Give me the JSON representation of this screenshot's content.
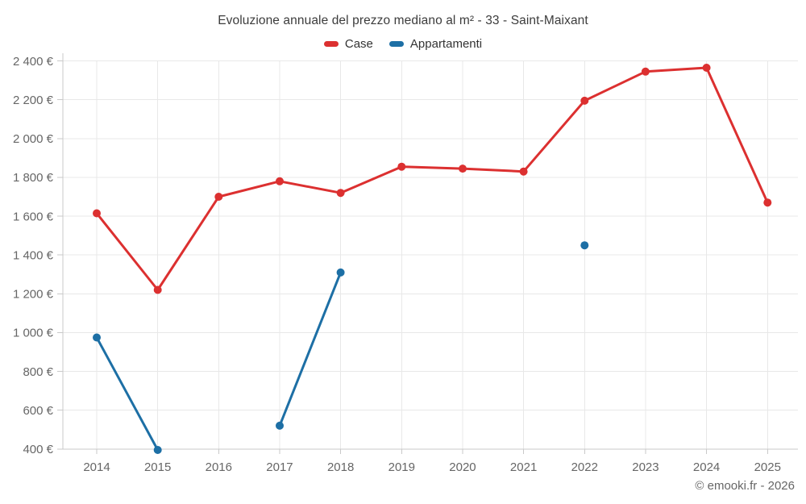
{
  "header": {
    "title": "Evoluzione annuale del prezzo mediano al m² - 33 - Saint-Maixant"
  },
  "footer": {
    "credit": "© emooki.fr - 2026"
  },
  "colors": {
    "case": "#dc3030",
    "appartamenti": "#1d6fa5",
    "grid": "#e8e8e8",
    "axis": "#c9c9c9",
    "tick_text": "#666666"
  },
  "chart_data": {
    "type": "line",
    "title": "Evoluzione annuale del prezzo mediano al m² - 33 - Saint-Maixant",
    "xlabel": "",
    "ylabel": "",
    "unit": "€ / m²",
    "x": [
      "2014",
      "2015",
      "2016",
      "2017",
      "2018",
      "2019",
      "2020",
      "2021",
      "2022",
      "2023",
      "2024",
      "2025"
    ],
    "ylim": [
      400,
      2400
    ],
    "yticks": [
      {
        "value": 2400,
        "label": "2 400 €"
      },
      {
        "value": 2200,
        "label": "2 200 €"
      },
      {
        "value": 2000,
        "label": "2 000 €"
      },
      {
        "value": 1800,
        "label": "1 800 €"
      },
      {
        "value": 1600,
        "label": "1 600 €"
      },
      {
        "value": 1400,
        "label": "1 400 €"
      },
      {
        "value": 1200,
        "label": "1 200 €"
      },
      {
        "value": 1000,
        "label": "1 000 €"
      },
      {
        "value": 800,
        "label": "800 €"
      },
      {
        "value": 600,
        "label": "600 €"
      },
      {
        "value": 400,
        "label": "400 €"
      }
    ],
    "grid": true,
    "legend_position": "top",
    "series": [
      {
        "name": "Case",
        "color": "#dc3030",
        "values": [
          1615,
          1220,
          1700,
          1780,
          1720,
          1855,
          1845,
          1830,
          2195,
          2345,
          2365,
          1670
        ]
      },
      {
        "name": "Appartamenti",
        "color": "#1d6fa5",
        "values": [
          975,
          395,
          null,
          520,
          1310,
          null,
          null,
          null,
          1450,
          null,
          null,
          null
        ]
      }
    ]
  }
}
